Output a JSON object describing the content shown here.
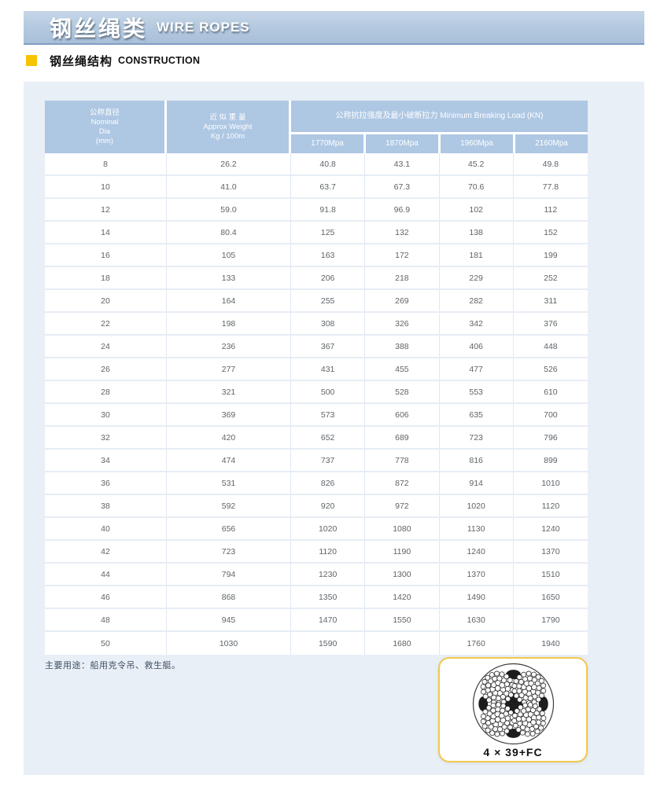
{
  "page": {
    "title_zh": "钢丝绳类",
    "title_en": "WIRE ROPES",
    "section_zh": "钢丝绳结构",
    "section_en": "CONSTRUCTION",
    "usage_note": "主要用途：船用克令吊、救生艇。",
    "diagram_label": "4 × 39+FC"
  },
  "colors": {
    "band_blue": "#b3c9df",
    "header_cell_blue": "#aec7e3",
    "panel_blue": "#e9eff6",
    "accent_yellow": "#f6c400",
    "card_border_yellow": "#f1c84f",
    "body_text": "#5f6468"
  },
  "table": {
    "col1_header": [
      "公称直径",
      "Nominal",
      "Dia",
      "(mm)"
    ],
    "col2_header": [
      "近 似 重 量",
      "Approx Weight",
      "Kg / 100m"
    ],
    "group_header": "公称抗拉强度及最小破断拉力 Minimum Breaking Load (KN)",
    "grade_headers": [
      "1770Mpa",
      "1870Mpa",
      "1960Mpa",
      "2160Mpa"
    ],
    "rows": [
      [
        "8",
        "26.2",
        "40.8",
        "43.1",
        "45.2",
        "49.8"
      ],
      [
        "10",
        "41.0",
        "63.7",
        "67.3",
        "70.6",
        "77.8"
      ],
      [
        "12",
        "59.0",
        "91.8",
        "96.9",
        "102",
        "112"
      ],
      [
        "14",
        "80.4",
        "125",
        "132",
        "138",
        "152"
      ],
      [
        "16",
        "105",
        "163",
        "172",
        "181",
        "199"
      ],
      [
        "18",
        "133",
        "206",
        "218",
        "229",
        "252"
      ],
      [
        "20",
        "164",
        "255",
        "269",
        "282",
        "311"
      ],
      [
        "22",
        "198",
        "308",
        "326",
        "342",
        "376"
      ],
      [
        "24",
        "236",
        "367",
        "388",
        "406",
        "448"
      ],
      [
        "26",
        "277",
        "431",
        "455",
        "477",
        "526"
      ],
      [
        "28",
        "321",
        "500",
        "528",
        "553",
        "610"
      ],
      [
        "30",
        "369",
        "573",
        "606",
        "635",
        "700"
      ],
      [
        "32",
        "420",
        "652",
        "689",
        "723",
        "796"
      ],
      [
        "34",
        "474",
        "737",
        "778",
        "816",
        "899"
      ],
      [
        "36",
        "531",
        "826",
        "872",
        "914",
        "1010"
      ],
      [
        "38",
        "592",
        "920",
        "972",
        "1020",
        "1120"
      ],
      [
        "40",
        "656",
        "1020",
        "1080",
        "1130",
        "1240"
      ],
      [
        "42",
        "723",
        "1120",
        "1190",
        "1240",
        "1370"
      ],
      [
        "44",
        "794",
        "1230",
        "1300",
        "1370",
        "1510"
      ],
      [
        "46",
        "868",
        "1350",
        "1420",
        "1490",
        "1650"
      ],
      [
        "48",
        "945",
        "1470",
        "1550",
        "1630",
        "1790"
      ],
      [
        "50",
        "1030",
        "1590",
        "1680",
        "1760",
        "1940"
      ]
    ]
  }
}
